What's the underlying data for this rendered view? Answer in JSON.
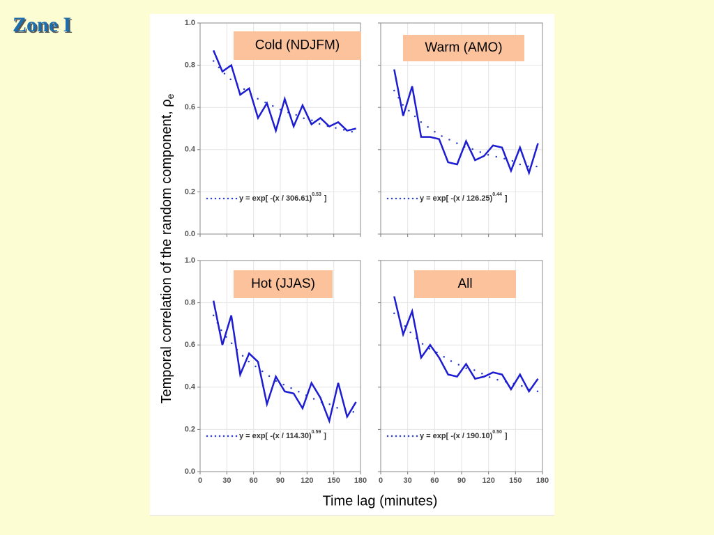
{
  "title": "Zone I",
  "y_label": "Temporal correlation of the random component, ρ",
  "y_label_subscript": "e",
  "x_label": "Time lag (minutes)",
  "chart_data": [
    {
      "type": "line",
      "label": "Cold (NDJFM)",
      "x": [
        15,
        25,
        35,
        45,
        55,
        65,
        75,
        85,
        95,
        105,
        115,
        125,
        135,
        145,
        155,
        165,
        175
      ],
      "series": [
        {
          "name": "y = exp[ -(x / 306.61)",
          "name_superscript": "0.53",
          "name_suffix": "]",
          "color": "#2b3fc4",
          "style": "dotted",
          "values": [
            0.82,
            0.77,
            0.73,
            0.7,
            0.67,
            0.64,
            0.62,
            0.6,
            0.58,
            0.57,
            0.55,
            0.54,
            0.52,
            0.51,
            0.5,
            0.49,
            0.48
          ]
        },
        {
          "color": "#1c1cd0",
          "style": "solid",
          "values": [
            0.87,
            0.77,
            0.8,
            0.66,
            0.69,
            0.55,
            0.62,
            0.49,
            0.64,
            0.51,
            0.61,
            0.52,
            0.55,
            0.51,
            0.53,
            0.49,
            0.5
          ]
        }
      ],
      "xlim": [
        0,
        180
      ],
      "xticks": [
        0,
        30,
        60,
        90,
        120,
        150,
        180
      ],
      "ylim": [
        0,
        1
      ],
      "yticks": [
        {
          "value": 0,
          "label": "0.0"
        },
        0.2,
        0.4,
        0.6,
        0.8,
        {
          "value": 1,
          "label": "1.0"
        }
      ],
      "grid": true
    },
    {
      "type": "line",
      "label": "Warm (AMO)",
      "x": [
        15,
        25,
        35,
        45,
        55,
        65,
        75,
        85,
        95,
        105,
        115,
        125,
        135,
        145,
        155,
        165,
        175
      ],
      "series": [
        {
          "name": "y = exp[ -(x / 126.25)",
          "name_superscript": "0.44",
          "name_suffix": "]",
          "color": "#2b3fc4",
          "style": "dotted",
          "values": [
            0.68,
            0.61,
            0.57,
            0.53,
            0.5,
            0.47,
            0.45,
            0.43,
            0.41,
            0.4,
            0.38,
            0.37,
            0.36,
            0.35,
            0.33,
            0.32,
            0.32
          ]
        },
        {
          "color": "#1c1cd0",
          "style": "solid",
          "values": [
            0.78,
            0.56,
            0.7,
            0.46,
            0.46,
            0.45,
            0.34,
            0.33,
            0.44,
            0.35,
            0.37,
            0.42,
            0.41,
            0.3,
            0.41,
            0.29,
            0.43
          ]
        }
      ],
      "xlim": [
        0,
        180
      ],
      "xticks": [
        0,
        30,
        60,
        90,
        120,
        150,
        180
      ],
      "ylim": [
        0,
        1
      ],
      "yticks": [
        0,
        0.2,
        0.4,
        0.6,
        0.8,
        1
      ],
      "grid": true
    },
    {
      "type": "line",
      "label": "Hot (JJAS)",
      "x": [
        15,
        25,
        35,
        45,
        55,
        65,
        75,
        85,
        95,
        105,
        115,
        125,
        135,
        145,
        155,
        165,
        175
      ],
      "series": [
        {
          "name": "y = exp[ -(x / 114.30)",
          "name_superscript": "0.59",
          "name_suffix": "]",
          "color": "#2b3fc4",
          "style": "dotted",
          "values": [
            0.74,
            0.66,
            0.61,
            0.56,
            0.52,
            0.49,
            0.46,
            0.43,
            0.41,
            0.39,
            0.37,
            0.35,
            0.33,
            0.32,
            0.3,
            0.29,
            0.28
          ]
        },
        {
          "color": "#1c1cd0",
          "style": "solid",
          "values": [
            0.81,
            0.6,
            0.74,
            0.46,
            0.56,
            0.52,
            0.32,
            0.45,
            0.38,
            0.37,
            0.3,
            0.42,
            0.35,
            0.24,
            0.42,
            0.26,
            0.33
          ]
        }
      ],
      "xlim": [
        0,
        180
      ],
      "xticks": [
        0,
        30,
        60,
        90,
        120,
        150,
        180
      ],
      "ylim": [
        0,
        1
      ],
      "yticks": [
        {
          "value": 0,
          "label": "0.0"
        },
        0.2,
        0.4,
        0.6,
        0.8,
        {
          "value": 1,
          "label": "1.0"
        }
      ],
      "grid": true
    },
    {
      "type": "line",
      "label": "All",
      "x": [
        15,
        25,
        35,
        45,
        55,
        65,
        75,
        85,
        95,
        105,
        115,
        125,
        135,
        145,
        155,
        165,
        175
      ],
      "series": [
        {
          "name": "y = exp[ -(x / 190.10)",
          "name_superscript": "0.50",
          "name_suffix": "]",
          "color": "#2b3fc4",
          "style": "dotted",
          "values": [
            0.75,
            0.7,
            0.65,
            0.61,
            0.58,
            0.56,
            0.53,
            0.51,
            0.49,
            0.48,
            0.46,
            0.44,
            0.43,
            0.42,
            0.41,
            0.39,
            0.38
          ]
        },
        {
          "color": "#1c1cd0",
          "style": "solid",
          "values": [
            0.83,
            0.65,
            0.76,
            0.54,
            0.6,
            0.54,
            0.46,
            0.45,
            0.51,
            0.44,
            0.45,
            0.47,
            0.46,
            0.39,
            0.46,
            0.38,
            0.44
          ]
        }
      ],
      "xlim": [
        0,
        180
      ],
      "xticks": [
        0,
        30,
        60,
        90,
        120,
        150,
        180
      ],
      "ylim": [
        0,
        1
      ],
      "yticks": [
        0,
        0.2,
        0.4,
        0.6,
        0.8,
        1
      ],
      "grid": true
    }
  ]
}
